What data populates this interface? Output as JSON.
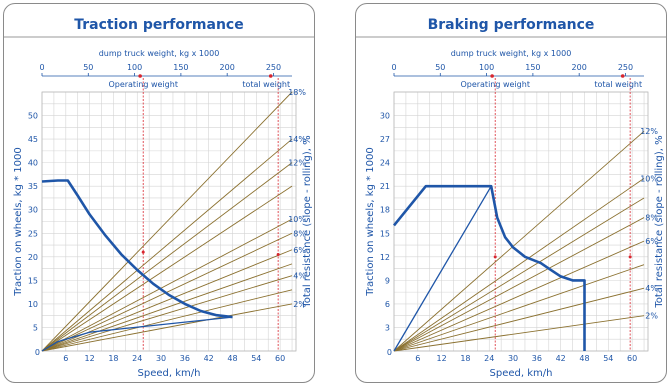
{
  "chart_data": [
    {
      "type": "line",
      "title": "Traction performance",
      "xlabel": "Speed, km/h",
      "ylabel": "Traction on wheels, kg * 1000",
      "top_axis_label": "dump truck weight, kg x 1000",
      "right_axis_label": "Total resistance (slope - rolling), %",
      "xlim": [
        0,
        64
      ],
      "ylim": [
        0,
        55
      ],
      "x_ticks": [
        0,
        6,
        12,
        18,
        24,
        30,
        36,
        42,
        48,
        54,
        60
      ],
      "y_ticks": [
        0,
        5,
        10,
        15,
        20,
        25,
        30,
        35,
        40,
        45,
        50
      ],
      "top_ticks": [
        0,
        50,
        100,
        150,
        200,
        250
      ],
      "top_max": 270,
      "markers": [
        {
          "label": "Operating weight",
          "top_value": 106,
          "speed": 25.5
        },
        {
          "label": "total weight",
          "top_value": 247,
          "speed": 59.5
        }
      ],
      "resistance_lines": [
        {
          "label": "2%",
          "end_y": 10
        },
        {
          "label": "",
          "end_y": 13
        },
        {
          "label": "4%",
          "end_y": 16
        },
        {
          "label": "",
          "end_y": 18.5
        },
        {
          "label": "6%",
          "end_y": 21.5
        },
        {
          "label": "8%",
          "end_y": 25
        },
        {
          "label": "10%",
          "end_y": 28
        },
        {
          "label": "",
          "end_y": 35
        },
        {
          "label": "12%",
          "end_y": 40
        },
        {
          "label": "14%",
          "end_y": 45
        },
        {
          "label": "18%",
          "end_y": 55
        }
      ],
      "grid": true,
      "series": [
        {
          "points": [
            [
              0,
              36
            ],
            [
              4,
              36.2
            ],
            [
              6.5,
              36.2
            ],
            [
              9,
              33
            ],
            [
              12,
              29
            ],
            [
              16,
              24.5
            ],
            [
              20,
              20.5
            ],
            [
              24,
              17.2
            ],
            [
              28,
              14.3
            ],
            [
              32,
              11.9
            ],
            [
              36,
              10
            ],
            [
              40,
              8.5
            ],
            [
              44,
              7.6
            ],
            [
              48,
              7.2
            ]
          ]
        },
        {
          "points": [
            [
              0,
              0
            ],
            [
              4,
              2
            ],
            [
              12,
              4
            ],
            [
              48,
              7.2
            ]
          ]
        }
      ]
    },
    {
      "type": "line",
      "title": "Braking performance",
      "xlabel": "Speed, km/h",
      "ylabel": "Traction on wheels, kg * 1000",
      "top_axis_label": "dump truck weight, kg x 1000",
      "right_axis_label": "Total resistance (slope - rolling), %",
      "xlim": [
        0,
        64
      ],
      "ylim": [
        0,
        33
      ],
      "x_ticks": [
        0,
        6,
        12,
        18,
        24,
        30,
        36,
        42,
        48,
        54,
        60
      ],
      "y_ticks": [
        0,
        3,
        6,
        9,
        12,
        15,
        18,
        21,
        24,
        27,
        30
      ],
      "top_ticks": [
        0,
        50,
        100,
        150,
        200,
        250
      ],
      "top_max": 270,
      "markers": [
        {
          "label": "Operating weight",
          "top_value": 106,
          "speed": 25.5
        },
        {
          "label": "total weight",
          "top_value": 247,
          "speed": 59.5
        }
      ],
      "resistance_lines": [
        {
          "label": "2%",
          "end_y": 4.5
        },
        {
          "label": "4%",
          "end_y": 8
        },
        {
          "label": "",
          "end_y": 11
        },
        {
          "label": "6%",
          "end_y": 14
        },
        {
          "label": "8%",
          "end_y": 17
        },
        {
          "label": "",
          "end_y": 19.5
        },
        {
          "label": "10%",
          "end_y": 22
        },
        {
          "label": "12%",
          "end_y": 28
        }
      ],
      "grid": true,
      "series": [
        {
          "points": [
            [
              0,
              16
            ],
            [
              8,
              21
            ],
            [
              24.5,
              21
            ],
            [
              26,
              17
            ],
            [
              28,
              14.5
            ],
            [
              30,
              13.2
            ],
            [
              33,
              12
            ],
            [
              37,
              11.2
            ],
            [
              39,
              10.5
            ],
            [
              42,
              9.5
            ],
            [
              45,
              9
            ],
            [
              48,
              9
            ],
            [
              48,
              0
            ]
          ]
        },
        {
          "points": [
            [
              0,
              0
            ],
            [
              24.5,
              21
            ]
          ]
        }
      ]
    }
  ]
}
